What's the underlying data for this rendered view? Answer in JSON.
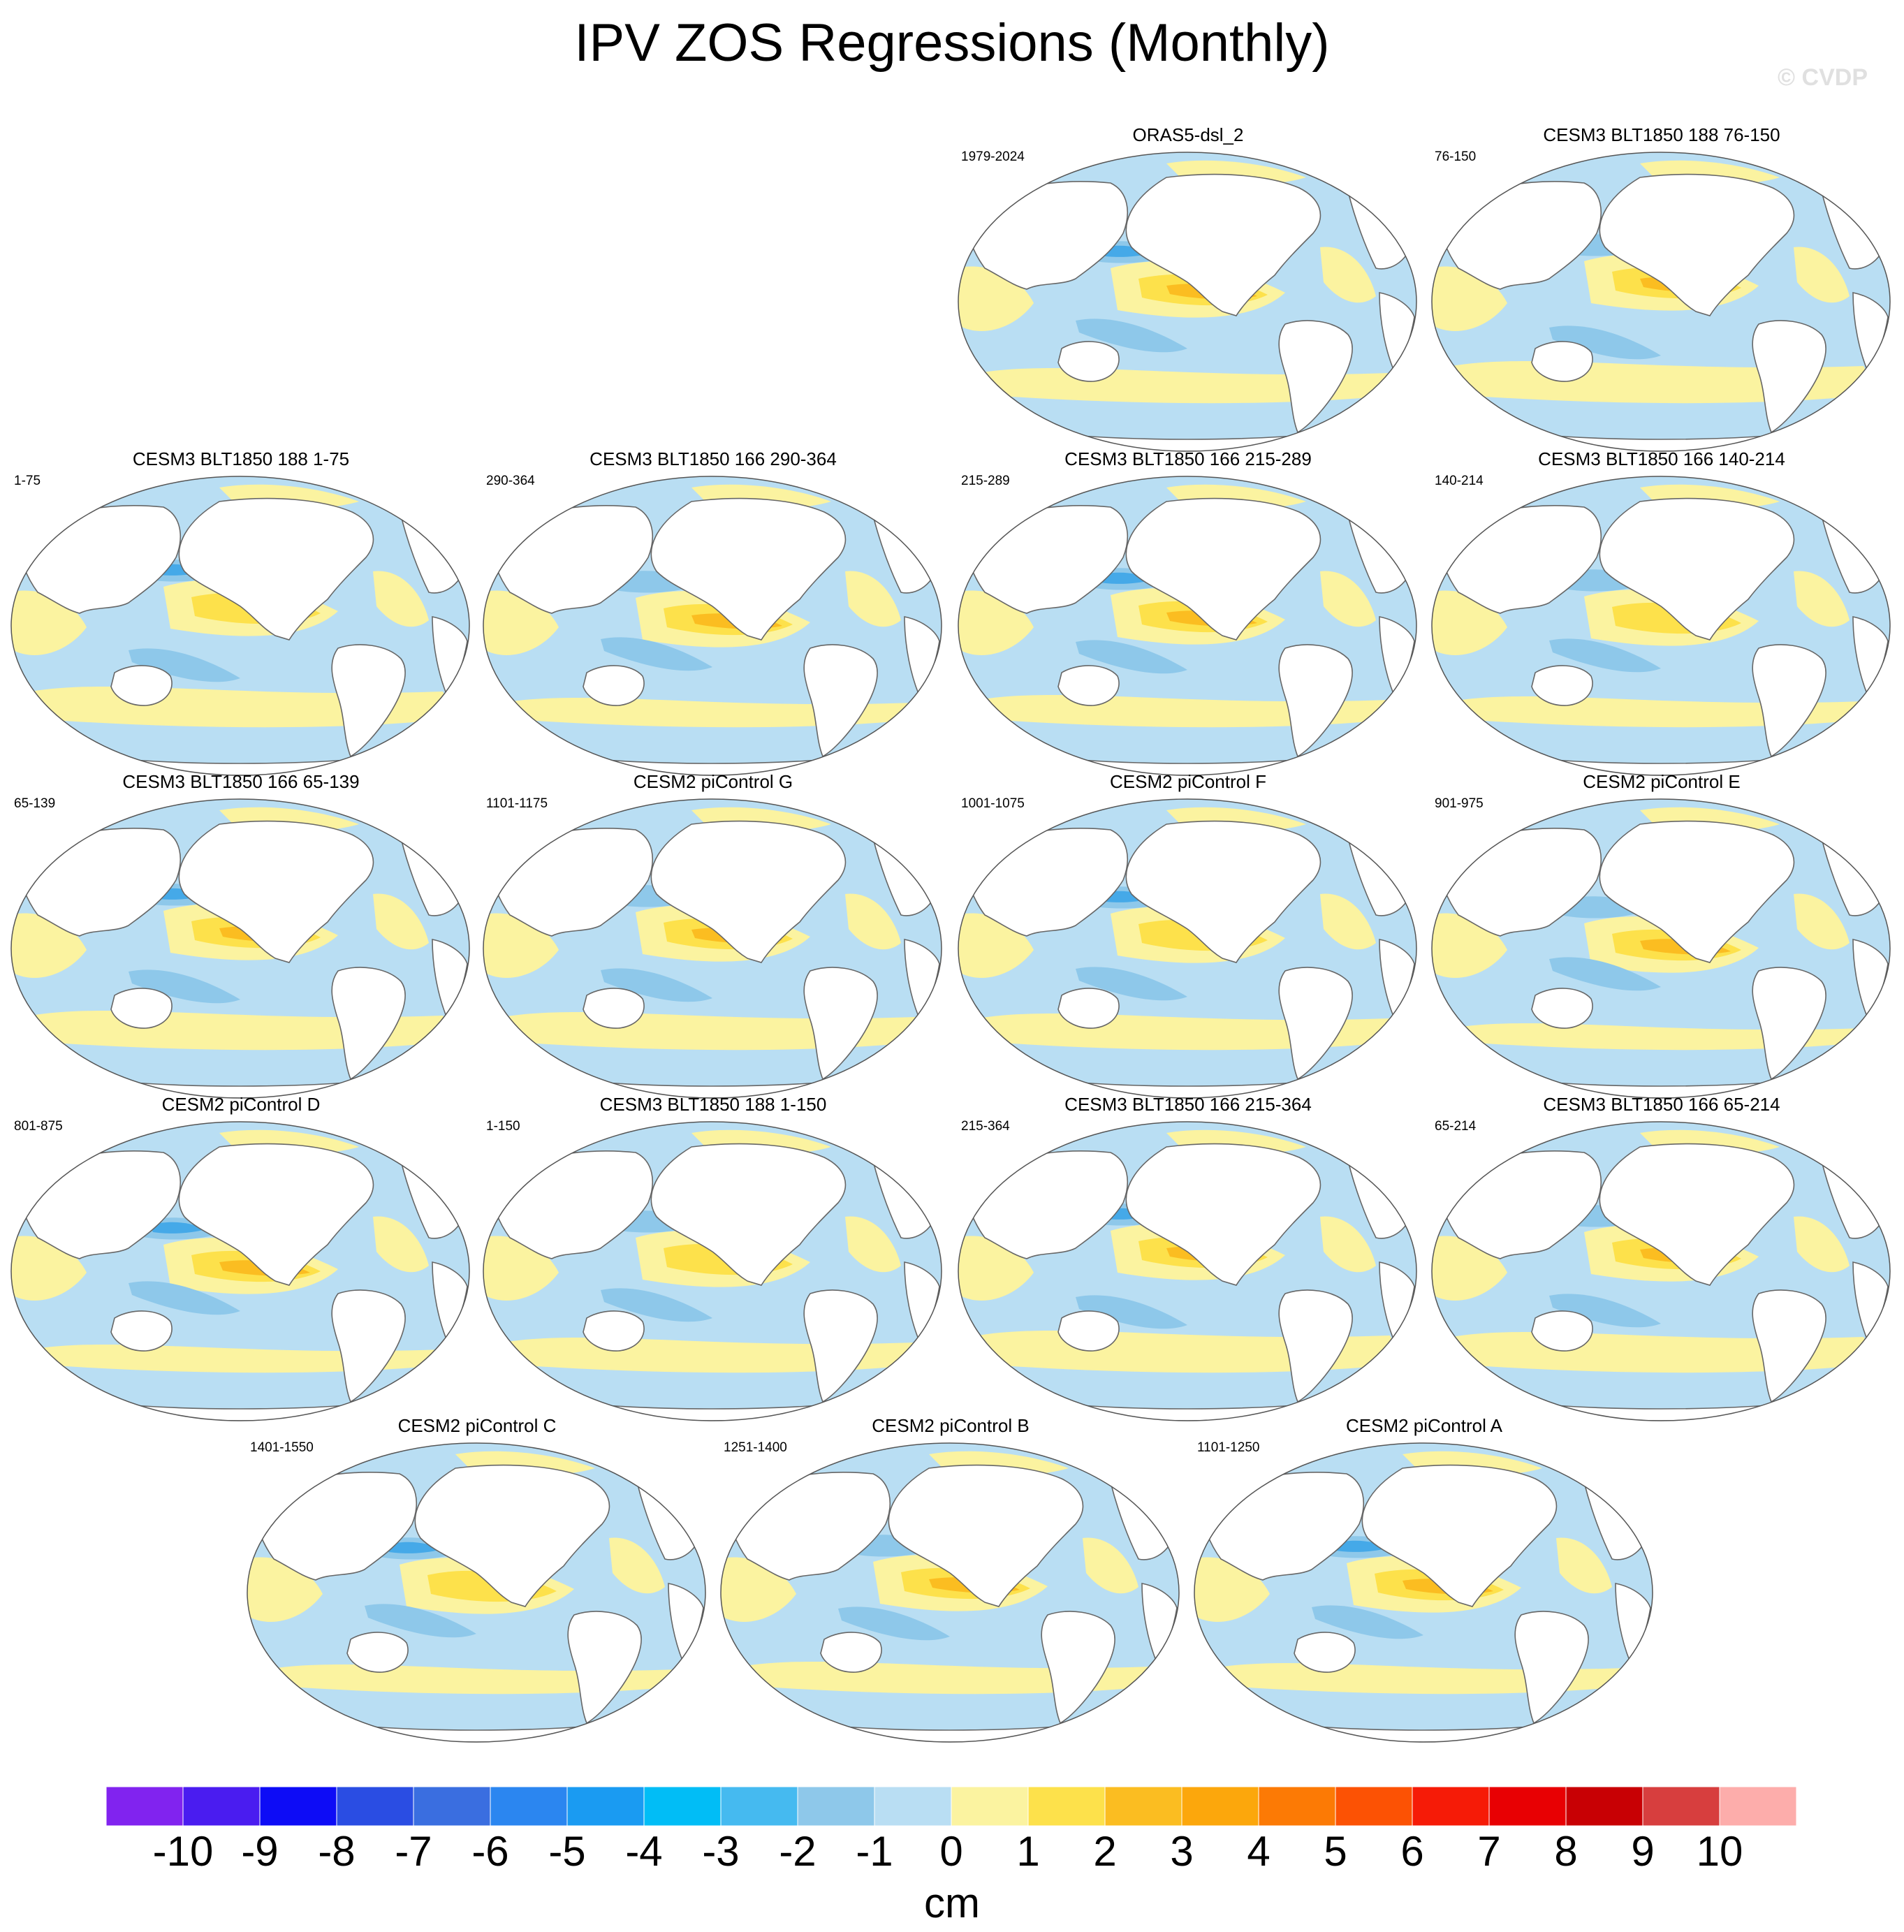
{
  "title": "IPV ZOS Regressions (Monthly)",
  "watermark": "© CVDP",
  "colors": {
    "ocean_neg_weak": "#b9def3",
    "ocean_neg": "#8ec8ea",
    "ocean_neg_strong": "#45a9e8",
    "ocean_pos_weak": "#fbf3a0",
    "ocean_pos": "#fde14b",
    "ocean_pos_strong": "#fbbd21",
    "land": "#ffffff",
    "coast": "#666666"
  },
  "panels": [
    {
      "title": "ORAS5-dsl_2",
      "period": "1979-2024"
    },
    {
      "title": "CESM3 BLT1850 188 76-150",
      "period": "76-150"
    },
    {
      "title": "CESM3 BLT1850 188 1-75",
      "period": "1-75"
    },
    {
      "title": "CESM3 BLT1850 166 290-364",
      "period": "290-364"
    },
    {
      "title": "CESM3 BLT1850 166 215-289",
      "period": "215-289"
    },
    {
      "title": "CESM3 BLT1850 166 140-214",
      "period": "140-214"
    },
    {
      "title": "CESM3 BLT1850 166 65-139",
      "period": "65-139"
    },
    {
      "title": "CESM2 piControl G",
      "period": "1101-1175"
    },
    {
      "title": "CESM2 piControl F",
      "period": "1001-1075"
    },
    {
      "title": "CESM2 piControl E",
      "period": "901-975"
    },
    {
      "title": "CESM2 piControl D",
      "period": "801-875"
    },
    {
      "title": "CESM3 BLT1850 188 1-150",
      "period": "1-150"
    },
    {
      "title": "CESM3 BLT1850 166 215-364",
      "period": "215-364"
    },
    {
      "title": "CESM3 BLT1850 166 65-214",
      "period": "65-214"
    },
    {
      "title": "CESM2 piControl C",
      "period": "1401-1550"
    },
    {
      "title": "CESM2 piControl B",
      "period": "1251-1400"
    },
    {
      "title": "CESM2 piControl A",
      "period": "1101-1250"
    }
  ],
  "colorbar": {
    "units": "cm",
    "labels": [
      "-10",
      "-9",
      "-8",
      "-7",
      "-6",
      "-5",
      "-4",
      "-3",
      "-2",
      "-1",
      "0",
      "1",
      "2",
      "3",
      "4",
      "5",
      "6",
      "7",
      "8",
      "9",
      "10"
    ],
    "colors": [
      "#8123ef",
      "#4a1cf0",
      "#0d0cf6",
      "#2a4de3",
      "#3a6ee0",
      "#2b86f0",
      "#1a9bf2",
      "#01bdf6",
      "#45baf0",
      "#8ec8ea",
      "#b9def3",
      "#fbf3a0",
      "#fde14b",
      "#fbbd21",
      "#fca70c",
      "#fc7a05",
      "#fc5204",
      "#f61b07",
      "#e80003",
      "#c80004",
      "#d73e3e",
      "#fdadab"
    ]
  }
}
